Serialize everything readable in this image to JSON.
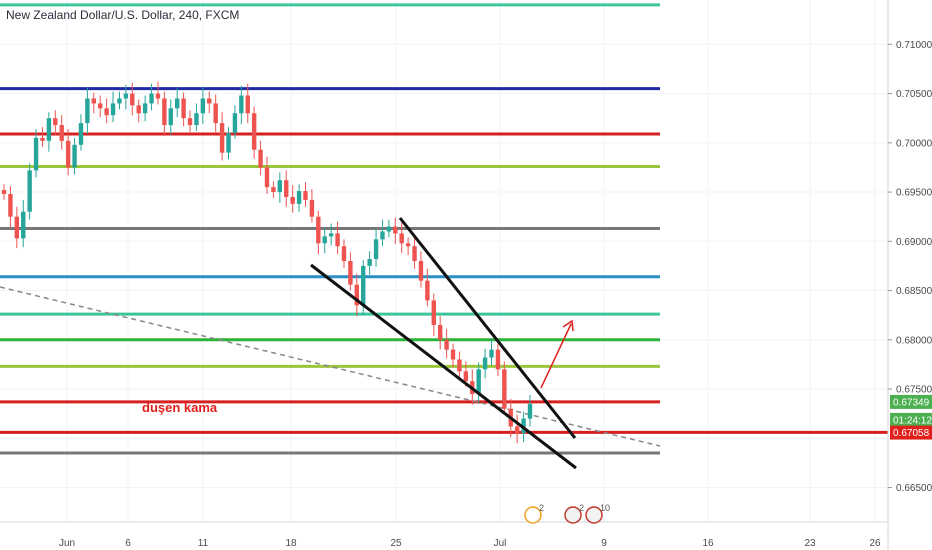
{
  "title": "New Zealand Dollar/U.S. Dollar, 240, FXCM",
  "annotation": "duşen kama",
  "colors": {
    "up": "#26a69a",
    "down": "#ef5350",
    "axis_bg": "#ffffff",
    "price_badge": "#4caf50",
    "red_badge": "#e0201c",
    "timer_badge": "#4caf50"
  },
  "chart_data": {
    "type": "candlestick",
    "symbol": "New Zealand Dollar/U.S. Dollar",
    "timeframe": "240",
    "source": "FXCM",
    "y_ticks": [
      "0.71000",
      "0.70500",
      "0.70000",
      "0.69500",
      "0.69000",
      "0.68500",
      "0.68000",
      "0.67500",
      "0.66500"
    ],
    "x_ticks": [
      "Jun",
      "6",
      "11",
      "18",
      "25",
      "Jul",
      "9",
      "16",
      "23",
      "26"
    ],
    "ylim": [
      0.6615,
      0.7145
    ],
    "badges": [
      {
        "text": "0.67349",
        "value": 0.67349,
        "kind": "price"
      },
      {
        "text": "01:24:12",
        "kind": "timer"
      },
      {
        "text": "0.67058",
        "value": 0.67058,
        "kind": "level"
      }
    ],
    "horizontal_levels": [
      {
        "value": 0.714,
        "color": "#3cc59a"
      },
      {
        "value": 0.7055,
        "color": "#1e2aa6"
      },
      {
        "value": 0.7009,
        "color": "#d61f1f"
      },
      {
        "value": 0.6976,
        "color": "#9bc53d"
      },
      {
        "value": 0.6913,
        "color": "#777777"
      },
      {
        "value": 0.6864,
        "color": "#2b8fc4"
      },
      {
        "value": 0.6826,
        "color": "#3cc59a"
      },
      {
        "value": 0.68,
        "color": "#2db33a"
      },
      {
        "value": 0.6773,
        "color": "#9bc53d"
      },
      {
        "value": 0.6737,
        "color": "#d61f1f"
      },
      {
        "value": 0.6706,
        "color": "#d61f1f"
      },
      {
        "value": 0.6685,
        "color": "#777777"
      }
    ],
    "closes": [
      0.6948,
      0.6925,
      0.6903,
      0.693,
      0.6972,
      0.7005,
      0.7002,
      0.7025,
      0.7018,
      0.7002,
      0.6975,
      0.6998,
      0.702,
      0.7045,
      0.704,
      0.7035,
      0.7028,
      0.704,
      0.7045,
      0.705,
      0.7038,
      0.703,
      0.704,
      0.705,
      0.7045,
      0.7018,
      0.7035,
      0.7045,
      0.7025,
      0.7018,
      0.703,
      0.7045,
      0.704,
      0.702,
      0.699,
      0.701,
      0.703,
      0.7048,
      0.703,
      0.6993,
      0.6975,
      0.6955,
      0.695,
      0.6962,
      0.6945,
      0.6938,
      0.6951,
      0.6942,
      0.6925,
      0.6898,
      0.6905,
      0.6908,
      0.6895,
      0.688,
      0.6856,
      0.6835,
      0.6875,
      0.6882,
      0.6902,
      0.691,
      0.6915,
      0.6908,
      0.6898,
      0.6895,
      0.688,
      0.686,
      0.684,
      0.6815,
      0.68,
      0.679,
      0.678,
      0.6768,
      0.6758,
      0.6745,
      0.677,
      0.6782,
      0.679,
      0.677,
      0.673,
      0.6712,
      0.6705,
      0.672,
      0.6735
    ],
    "wedge_lines": [
      {
        "from": [
          0.692,
          "line_start_a"
        ],
        "to": [
          0.6698,
          "line_end_a"
        ]
      },
      {
        "from": [
          0.6874,
          "line_start_b"
        ],
        "to": [
          0.6675,
          "line_end_b"
        ]
      }
    ]
  },
  "events": [
    {
      "label": "2",
      "icon": "earnings-icon"
    },
    {
      "label": "2",
      "icon": "us-flag-icon"
    },
    {
      "label": "10",
      "icon": "us-flag-icon"
    }
  ]
}
